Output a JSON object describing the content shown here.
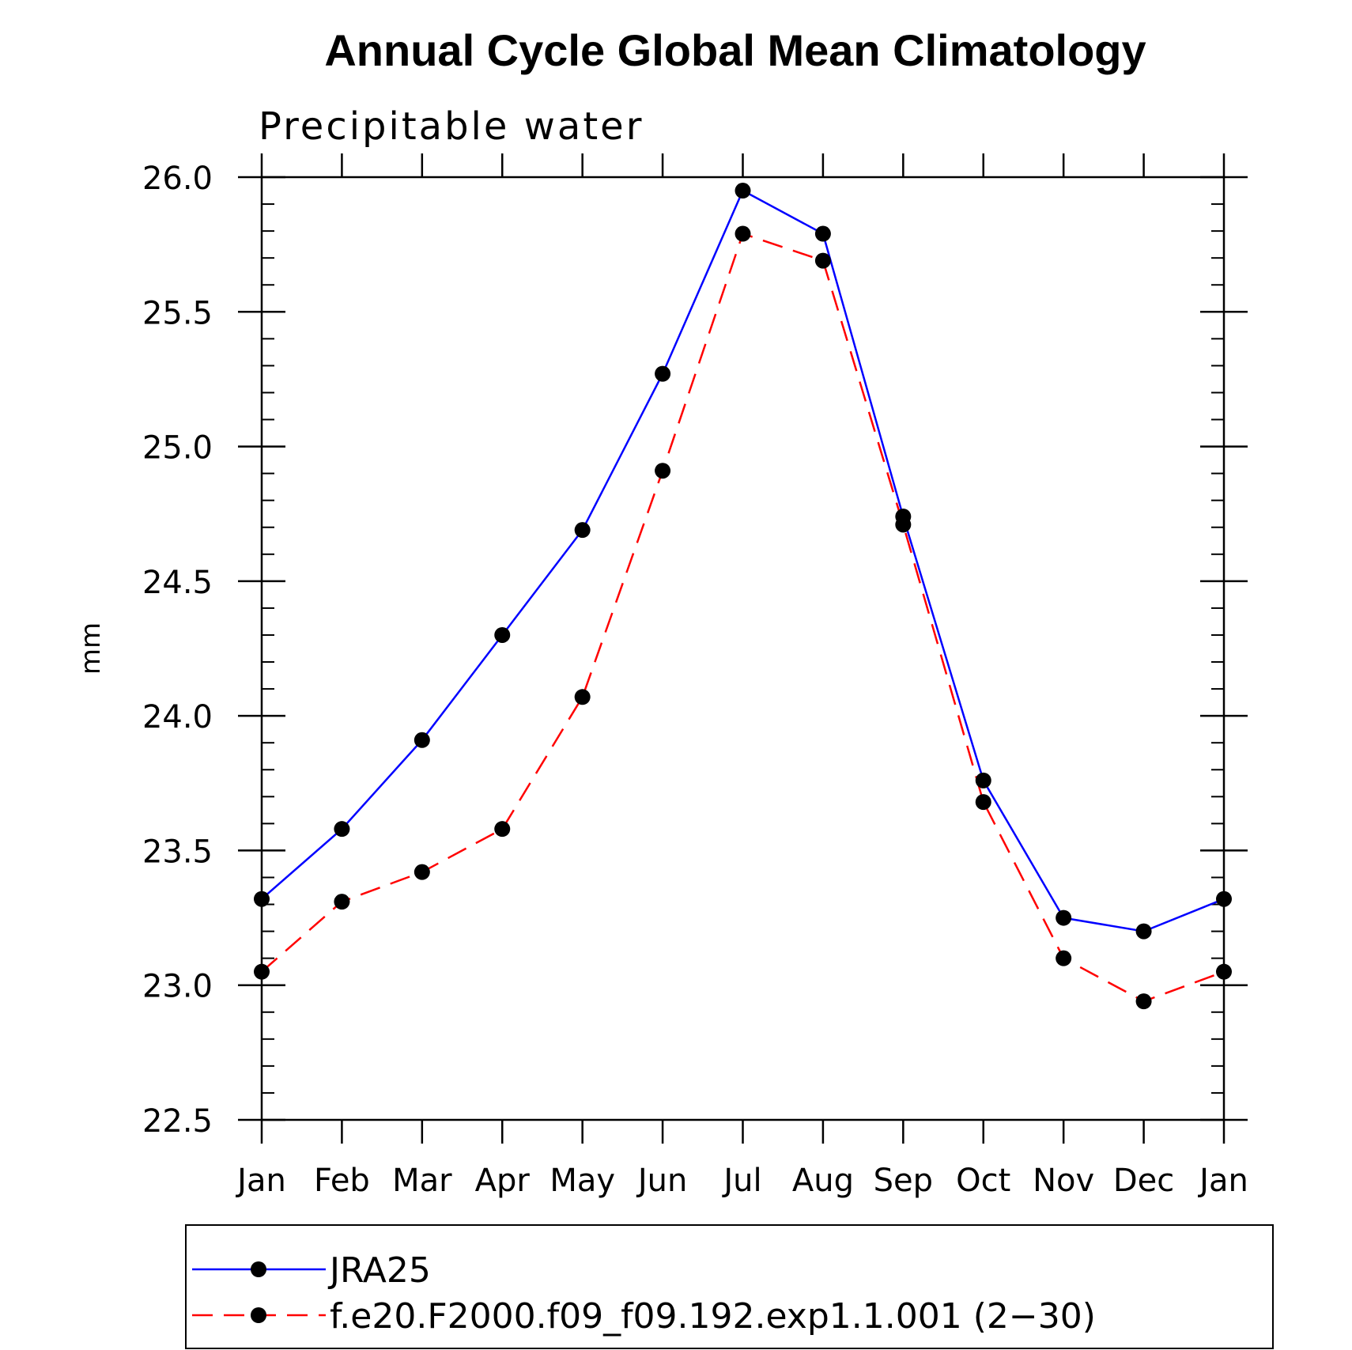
{
  "chart_data": {
    "type": "line",
    "title": "Annual Cycle Global Mean Climatology",
    "subtitle": "Precipitable water",
    "xlabel": "",
    "ylabel": "mm",
    "categories": [
      "Jan",
      "Feb",
      "Mar",
      "Apr",
      "May",
      "Jun",
      "Jul",
      "Aug",
      "Sep",
      "Oct",
      "Nov",
      "Dec",
      "Jan"
    ],
    "ylim": [
      22.5,
      26.0
    ],
    "yticks": [
      "22.5",
      "23.0",
      "23.5",
      "24.0",
      "24.5",
      "25.0",
      "25.5",
      "26.0"
    ],
    "grid": false,
    "legend_position": "bottom",
    "series": [
      {
        "name": "JRA25",
        "color": "#0000ff",
        "style": "solid",
        "marker": "circle",
        "values": [
          23.32,
          23.58,
          23.91,
          24.3,
          24.69,
          25.27,
          25.95,
          25.79,
          24.74,
          23.76,
          23.25,
          23.2,
          23.32
        ]
      },
      {
        "name": "f.e20.F2000.f09_f09.192.exp1.1.001 (2−30)",
        "color": "#ff0000",
        "style": "dashed",
        "marker": "circle",
        "values": [
          23.05,
          23.31,
          23.42,
          23.58,
          24.07,
          24.91,
          25.79,
          25.69,
          24.71,
          23.68,
          23.1,
          22.94,
          23.05
        ]
      }
    ]
  }
}
